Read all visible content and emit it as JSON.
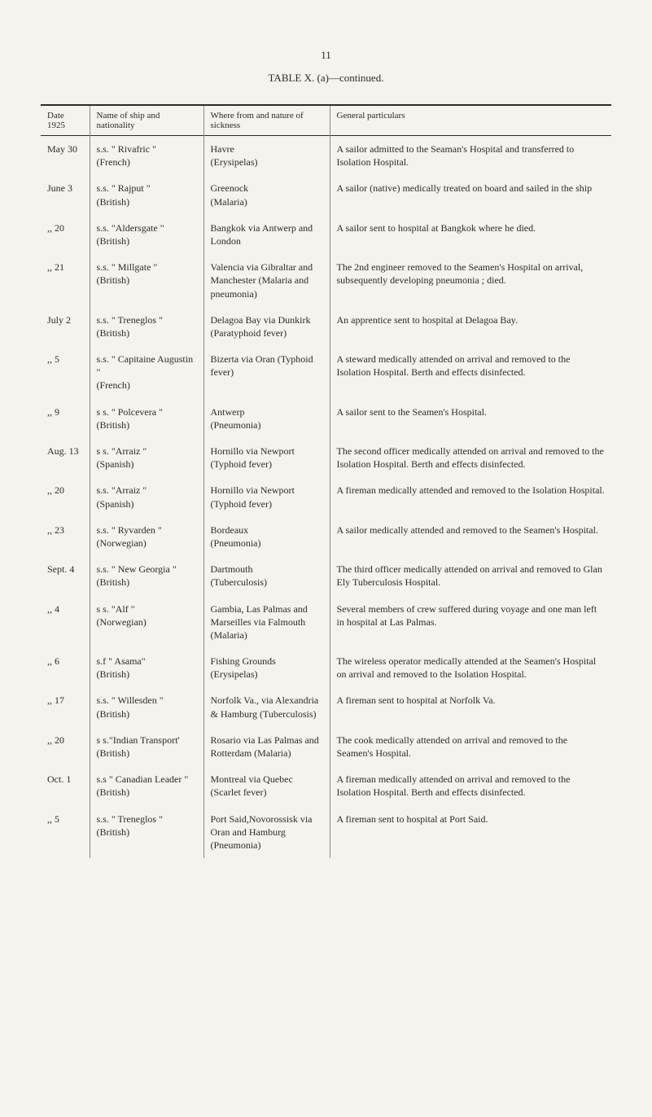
{
  "page_number": "11",
  "table_title": "TABLE X. (a)—continued.",
  "headers": {
    "date": "Date\n1925",
    "ship": "Name of ship and\nnationality",
    "where": "Where from and\nnature of sickness",
    "particulars": "General particulars"
  },
  "rows": [
    {
      "date": "May 30",
      "ship": "s.s. \" Rivafric \"\n(French)",
      "where": "Havre\n(Erysipelas)",
      "particulars": "A sailor admitted to the Seaman's Hospital and transferred to Isolation Hospital."
    },
    {
      "date": "June 3",
      "ship": "s.s. \" Rajput \"\n(British)",
      "where": "Greenock\n(Malaria)",
      "particulars": "A sailor (native) medically treated on board and sailed in the ship"
    },
    {
      "date": ",, 20",
      "ship": "s.s. \"Aldersgate \"\n(British)",
      "where": "Bangkok via Antwerp and London",
      "particulars": "A sailor sent to hospital at Bangkok where he died."
    },
    {
      "date": ",, 21",
      "ship": "s.s. \" Millgate \"\n(British)",
      "where": "Valencia via Gibraltar and Manchester (Malaria and pneumonia)",
      "particulars": "The 2nd engineer removed to the Seamen's Hospital on arrival, subsequently developing pneumonia ; died."
    },
    {
      "date": "July 2",
      "ship": "s.s. \" Treneglos \"\n(British)",
      "where": "Delagoa Bay via Dunkirk (Paratyphoid fever)",
      "particulars": "An apprentice sent to hospital at Delagoa Bay."
    },
    {
      "date": ",, 5",
      "ship": "s.s. \" Capitaine Augustin \"\n(French)",
      "where": "Bizerta via Oran (Typhoid fever)",
      "particulars": "A steward medically attended on arrival and removed to the Isolation Hospital. Berth and effects disinfected."
    },
    {
      "date": ",, 9",
      "ship": "s s. \" Polcevera \"\n(British)",
      "where": "Antwerp\n(Pneumonia)",
      "particulars": "A sailor sent to the Seamen's Hospital."
    },
    {
      "date": "Aug. 13",
      "ship": "s s. \"Arraiz \"\n(Spanish)",
      "where": "Hornillo via Newport (Typhoid fever)",
      "particulars": "The second officer medically attended on arrival and removed to the Isolation Hospital. Berth and effects disinfected."
    },
    {
      "date": ",, 20",
      "ship": "s.s. \"Arraiz \"\n(Spanish)",
      "where": "Hornillo via Newport (Typhoid fever)",
      "particulars": "A fireman medically attended and removed to the Isolation Hospital."
    },
    {
      "date": ",, 23",
      "ship": "s.s. \" Ryvarden \"\n(Norwegian)",
      "where": "Bordeaux\n(Pneumonia)",
      "particulars": "A sailor medically attended and removed to the Seamen's Hospital."
    },
    {
      "date": "Sept. 4",
      "ship": "s.s. \" New Georgia \"\n(British)",
      "where": "Dartmouth\n(Tuberculosis)",
      "particulars": "The third officer medically attended on arrival and removed to Glan Ely Tuberculosis Hospital."
    },
    {
      "date": ",, 4",
      "ship": "s s. \"Alf \"\n(Norwegian)",
      "where": "Gambia, Las Palmas and Marseilles via Falmouth (Malaria)",
      "particulars": "Several members of crew suffered during voyage and one man left in hospital at Las Palmas."
    },
    {
      "date": ",, 6",
      "ship": "s.f \" Asama\"\n(British)",
      "where": "Fishing Grounds (Erysipelas)",
      "particulars": "The wireless operator medically attended at the Seamen's Hospital on arrival and removed to the Isolation Hospital."
    },
    {
      "date": ",, 17",
      "ship": "s.s. \" Willesden \"\n(British)",
      "where": "Norfolk Va., via Alexandria & Hamburg (Tuberculosis)",
      "particulars": "A fireman sent to hospital at Norfolk Va."
    },
    {
      "date": ",, 20",
      "ship": "s s.\"Indian Transport'\n(British)",
      "where": "Rosario via Las Palmas and Rotterdam (Malaria)",
      "particulars": "The cook medically attended on arrival and removed to the Seamen's Hospital."
    },
    {
      "date": "Oct. 1",
      "ship": "s.s \" Canadian Leader \"\n(British)",
      "where": "Montreal via Quebec (Scarlet fever)",
      "particulars": "A fireman medically attended on arrival and removed to the Isolation Hospital. Berth and effects disinfected."
    },
    {
      "date": ",, 5",
      "ship": "s.s. \" Treneglos \"\n(British)",
      "where": "Port Said,Novorossisk via Oran and Hamburg (Pneumonia)",
      "particulars": "A fireman sent to hospital at Port Said."
    }
  ]
}
